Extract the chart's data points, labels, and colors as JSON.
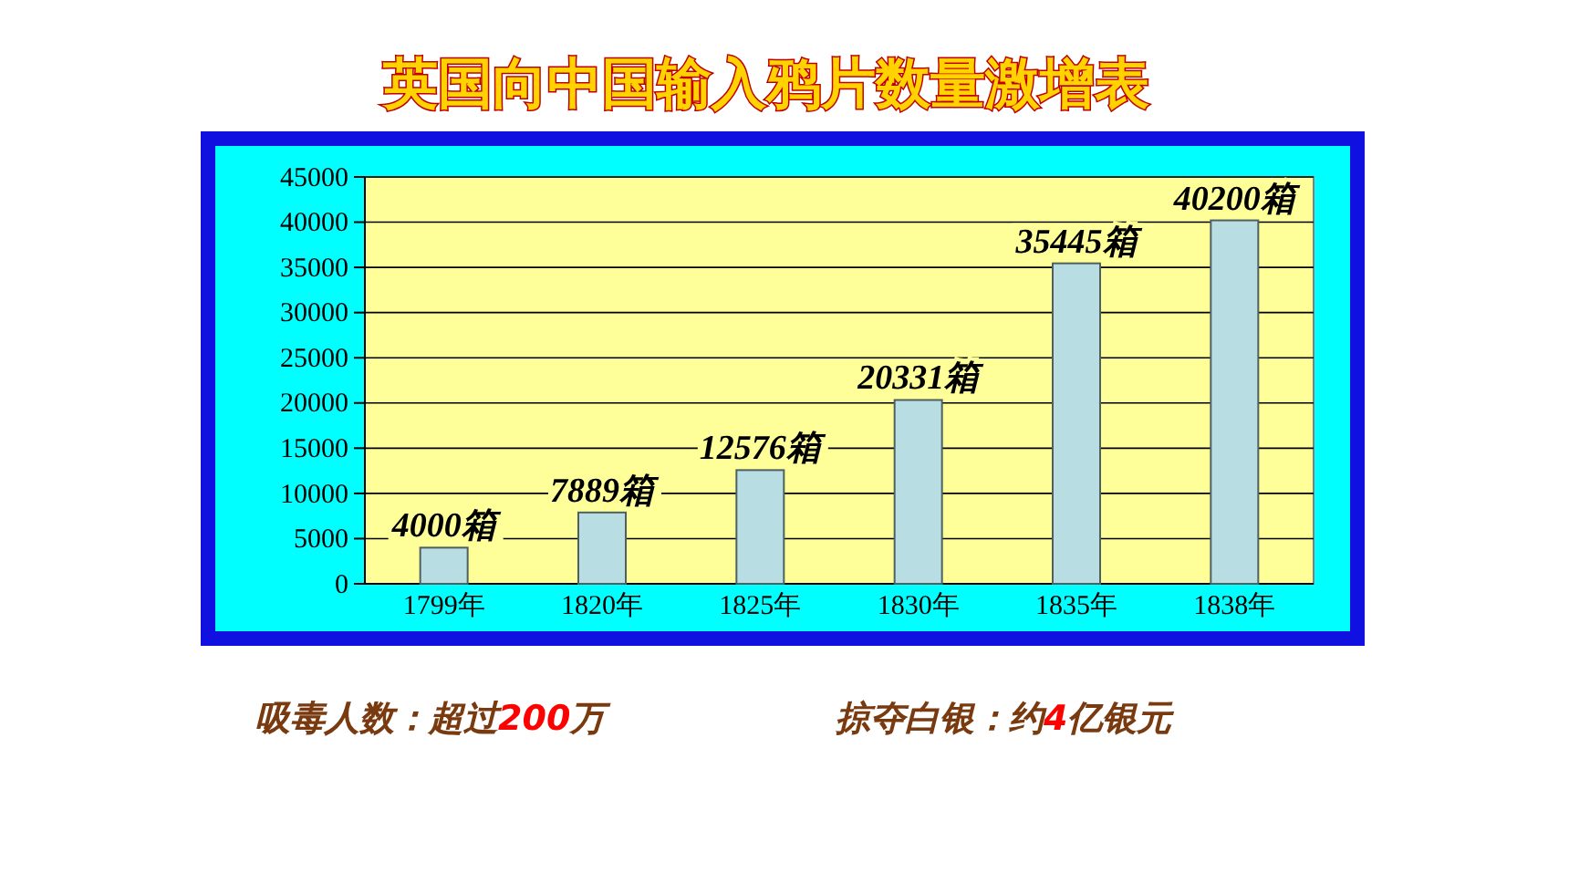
{
  "chart_data": {
    "type": "bar",
    "title": "英国向中国输入鸦片数量激增表",
    "categories": [
      "1799年",
      "1820年",
      "1825年",
      "1830年",
      "1835年",
      "1838年"
    ],
    "values": [
      4000,
      7889,
      12576,
      20331,
      35445,
      40200
    ],
    "value_labels": [
      "4000箱",
      "7889箱",
      "12576箱",
      "20331箱",
      "35445箱",
      "40200箱"
    ],
    "color": "#b8dde2",
    "ylim": [
      0,
      45000
    ],
    "yticks": [
      0,
      5000,
      10000,
      15000,
      20000,
      25000,
      30000,
      35000,
      40000,
      45000
    ],
    "grid": "y",
    "annotations": [
      "吸毒人数：超过200万",
      "掠夺白银：约4亿银元"
    ]
  }
}
